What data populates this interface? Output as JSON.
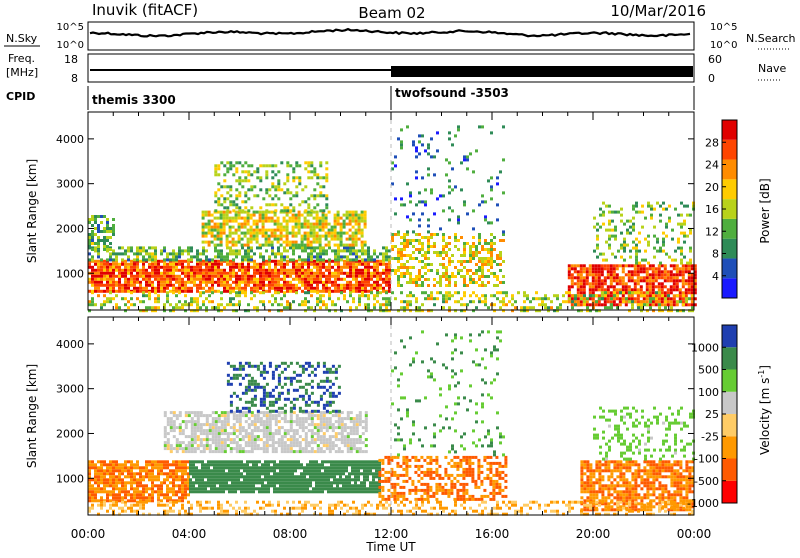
{
  "header": {
    "station": "Inuvik (fitACF)",
    "beam": "Beam 02",
    "date": "10/Mar/2016"
  },
  "top_panels": {
    "nsky_label": "N.Sky",
    "nsky_ticks": [
      "10^5",
      "10^0"
    ],
    "nsky_right_ticks": [
      "10^5",
      "10^0"
    ],
    "nsearch_label": "N.Search",
    "freq_label_1": "Freq.",
    "freq_label_2": "[MHz]",
    "freq_ticks": [
      "18",
      "8"
    ],
    "nave_ticks": [
      "60",
      "0"
    ],
    "nave_label": "Nave",
    "cpid_label": "CPID",
    "cpid_segments": [
      {
        "name": "themis 3300",
        "start_hour": 0,
        "end_hour": 12
      },
      {
        "name": "twofsound -3503",
        "start_hour": 12,
        "end_hour": 24
      }
    ]
  },
  "chart_data": [
    {
      "type": "heatmap",
      "title": "Power",
      "ylabel": "Slant Range [km]",
      "xlabel": "",
      "xlim_hours": [
        0,
        24
      ],
      "ylim": [
        180,
        4600
      ],
      "y_ticks": [
        1000,
        2000,
        3000,
        4000
      ],
      "colorbar_label": "Power [dB]",
      "colorbar_ticks": [
        4,
        8,
        12,
        16,
        20,
        24,
        28
      ],
      "colorbar_range": [
        0,
        32
      ],
      "colors": [
        "#1a1aff",
        "#1f4fb8",
        "#2e8b57",
        "#4fae3e",
        "#b8d21a",
        "#ffcc00",
        "#ff8c00",
        "#ff4500",
        "#e00000"
      ],
      "regions": [
        {
          "x": [
            0.0,
            12.0
          ],
          "y": [
            600,
            1300
          ],
          "value": 26,
          "density": 0.85
        },
        {
          "x": [
            0.0,
            12.0
          ],
          "y": [
            1300,
            1600
          ],
          "value": 12,
          "density": 0.6
        },
        {
          "x": [
            4.5,
            11.0
          ],
          "y": [
            1600,
            2400
          ],
          "value": 18,
          "density": 0.7
        },
        {
          "x": [
            5.0,
            9.5
          ],
          "y": [
            2400,
            3500
          ],
          "value": 14,
          "density": 0.35
        },
        {
          "x": [
            0.0,
            1.0
          ],
          "y": [
            1500,
            2300
          ],
          "value": 12,
          "density": 0.6
        },
        {
          "x": [
            12.0,
            16.5
          ],
          "y": [
            700,
            1900
          ],
          "value": 18,
          "density": 0.45
        },
        {
          "x": [
            12.0,
            16.5
          ],
          "y": [
            1900,
            4300
          ],
          "value": 8,
          "density": 0.1
        },
        {
          "x": [
            19.0,
            24.0
          ],
          "y": [
            300,
            1200
          ],
          "value": 28,
          "density": 0.8
        },
        {
          "x": [
            20.0,
            24.0
          ],
          "y": [
            1200,
            2600
          ],
          "value": 14,
          "density": 0.25
        },
        {
          "x": [
            0.0,
            24.0
          ],
          "y": [
            180,
            600
          ],
          "value": 16,
          "density": 0.35
        }
      ]
    },
    {
      "type": "heatmap",
      "title": "Velocity",
      "ylabel": "Slant Range [km]",
      "xlabel": "Time UT",
      "x_ticks": [
        "00:00",
        "04:00",
        "08:00",
        "12:00",
        "16:00",
        "20:00",
        "00:00"
      ],
      "xlim_hours": [
        0,
        24
      ],
      "ylim": [
        180,
        4600
      ],
      "y_ticks": [
        1000,
        2000,
        3000,
        4000
      ],
      "colorbar_label": "Velocity [m s^-1]",
      "colorbar_label_main": "Velocity [m s",
      "colorbar_label_exp": "-1",
      "colorbar_label_end": "]",
      "colorbar_ticks": [
        1000,
        500,
        100,
        25,
        -25,
        -100,
        -500,
        -1000
      ],
      "colors": [
        "#ff0000",
        "#ff5a00",
        "#ff9900",
        "#ffcc66",
        "#c8c8c8",
        "#66cc33",
        "#3a8a4a",
        "#1f3fb0"
      ],
      "regions": [
        {
          "x": [
            0.0,
            4.0
          ],
          "y": [
            500,
            1400
          ],
          "value": -500,
          "density": 0.8
        },
        {
          "x": [
            4.0,
            11.5
          ],
          "y": [
            700,
            1400
          ],
          "value": 200,
          "density": 0.9
        },
        {
          "x": [
            3.0,
            11.0
          ],
          "y": [
            1600,
            2500
          ],
          "value": 0,
          "density": 0.7
        },
        {
          "x": [
            5.5,
            10.0
          ],
          "y": [
            2500,
            3600
          ],
          "value": 500,
          "density": 0.35
        },
        {
          "x": [
            11.5,
            16.5
          ],
          "y": [
            500,
            1500
          ],
          "value": -500,
          "density": 0.5
        },
        {
          "x": [
            12.0,
            16.5
          ],
          "y": [
            1500,
            4300
          ],
          "value": 100,
          "density": 0.1
        },
        {
          "x": [
            19.5,
            24.0
          ],
          "y": [
            300,
            1400
          ],
          "value": -500,
          "density": 0.75
        },
        {
          "x": [
            20.0,
            24.0
          ],
          "y": [
            1400,
            2600
          ],
          "value": 50,
          "density": 0.25
        },
        {
          "x": [
            0.0,
            24.0
          ],
          "y": [
            180,
            500
          ],
          "value": -100,
          "density": 0.35
        }
      ]
    }
  ]
}
